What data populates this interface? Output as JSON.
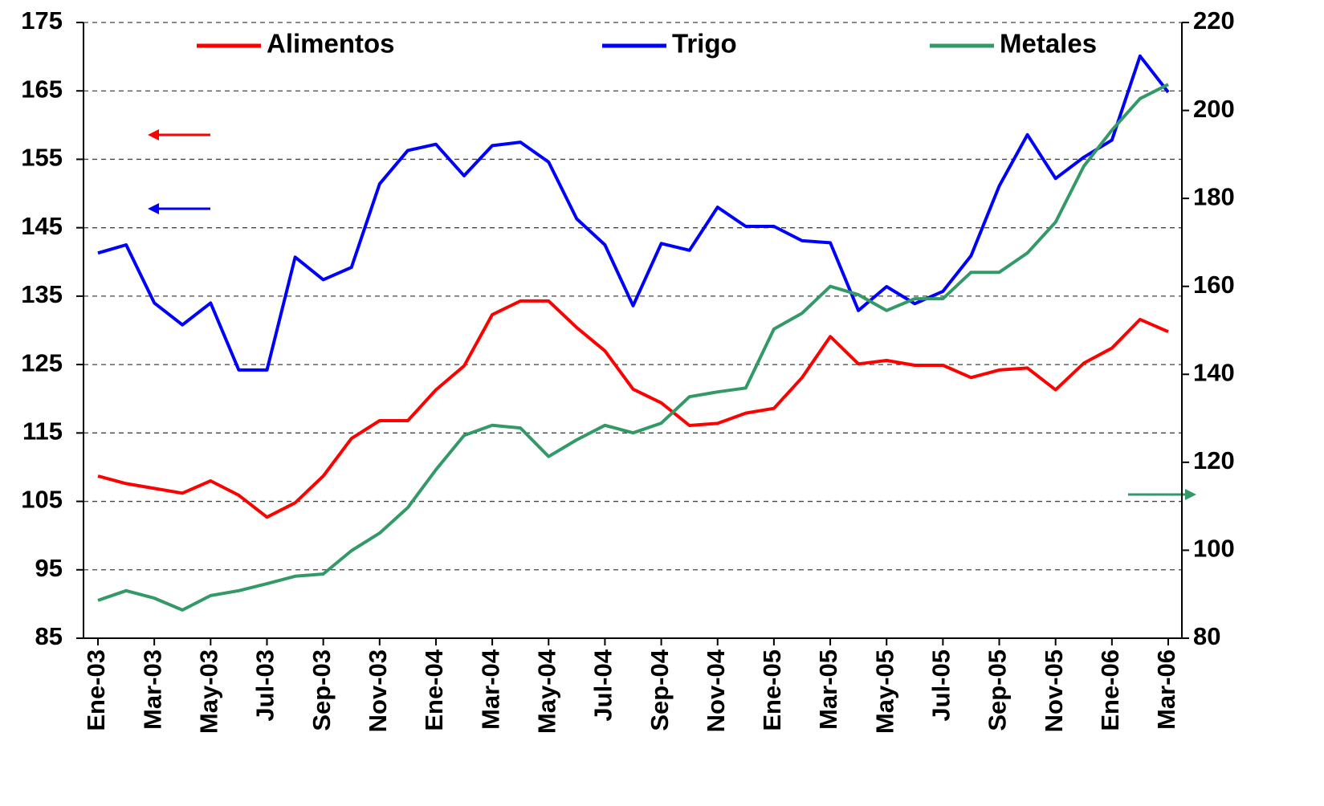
{
  "chart_data": {
    "type": "line",
    "categories": [
      "Ene-03",
      null,
      "Mar-03",
      null,
      "May-03",
      null,
      "Jul-03",
      null,
      "Sep-03",
      null,
      "Nov-03",
      null,
      "Ene-04",
      null,
      "Mar-04",
      null,
      "May-04",
      null,
      "Jul-04",
      null,
      "Sep-04",
      null,
      "Nov-04",
      null,
      "Ene-05",
      null,
      "Mar-05",
      null,
      "May-05",
      null,
      "Jul-05",
      null,
      "Sep-05",
      null,
      "Nov-05",
      null,
      "Ene-06",
      null,
      "Mar-06"
    ],
    "series": [
      {
        "name": "Alimentos",
        "color": "#ff0000",
        "axis": "y",
        "values": [
          108.7,
          107.6,
          106.9,
          106.2,
          108.0,
          105.9,
          102.7,
          104.8,
          108.7,
          114.2,
          116.8,
          116.8,
          121.3,
          124.8,
          132.3,
          134.3,
          134.3,
          130.4,
          127.0,
          121.4,
          119.4,
          116.1,
          116.4,
          117.9,
          118.6,
          123.1,
          129.1,
          125.1,
          125.6,
          124.9,
          124.9,
          123.1,
          124.2,
          124.5,
          121.3,
          125.2,
          127.4,
          131.6,
          129.8
        ]
      },
      {
        "name": "Trigo",
        "color": "#0000ff",
        "axis": "y",
        "values": [
          141.3,
          142.5,
          134.0,
          130.8,
          134.0,
          124.2,
          124.2,
          140.7,
          137.4,
          139.2,
          151.4,
          156.3,
          157.2,
          152.6,
          157.0,
          157.5,
          154.6,
          146.3,
          142.5,
          133.6,
          142.7,
          141.7,
          148.0,
          145.2,
          145.2,
          143.1,
          142.8,
          132.9,
          136.4,
          133.9,
          135.7,
          140.9,
          151.1,
          158.6,
          152.2,
          155.3,
          157.8,
          170.1,
          164.8
        ]
      },
      {
        "name": "Metales",
        "color": "#339966",
        "axis": "y2",
        "values": [
          88.6,
          90.8,
          89.1,
          86.4,
          89.7,
          90.8,
          92.4,
          94.1,
          94.6,
          99.9,
          103.9,
          109.7,
          118.3,
          126.1,
          128.4,
          127.8,
          121.3,
          125.1,
          128.4,
          126.7,
          128.9,
          134.9,
          136.0,
          136.9,
          150.3,
          153.9,
          160.0,
          158.1,
          154.5,
          157.2,
          157.2,
          163.2,
          163.2,
          167.6,
          174.6,
          187.3,
          195.5,
          202.7,
          205.9
        ]
      }
    ],
    "ylim": [
      85,
      175
    ],
    "yticks": [
      85,
      95,
      105,
      115,
      125,
      135,
      145,
      155,
      165,
      175
    ],
    "y2lim": [
      80,
      220
    ],
    "y2ticks": [
      80,
      100,
      120,
      140,
      160,
      180,
      200,
      220
    ],
    "grid": true,
    "legend": "top"
  }
}
